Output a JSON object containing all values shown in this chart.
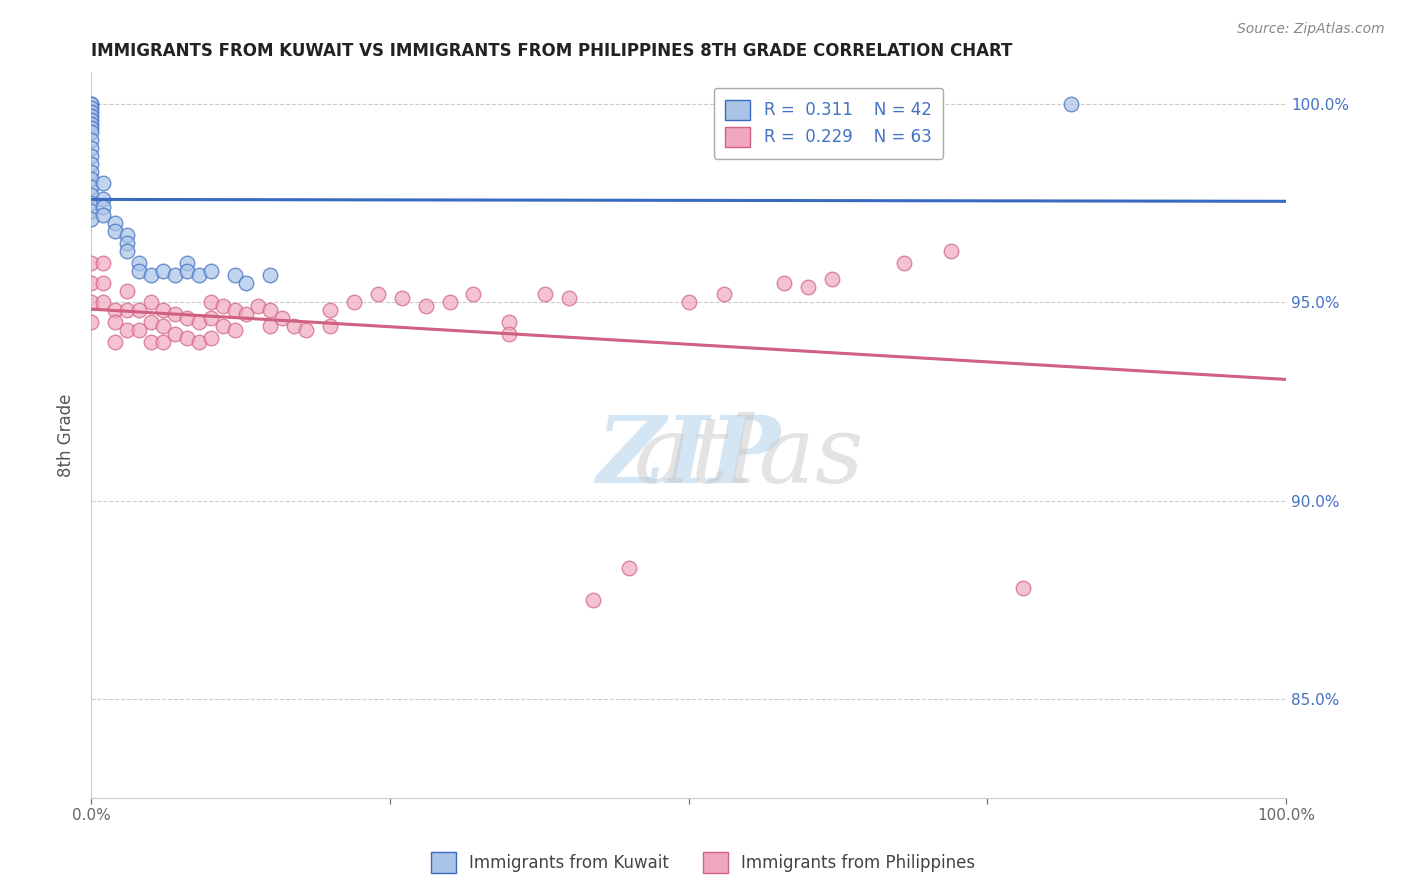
{
  "title": "IMMIGRANTS FROM KUWAIT VS IMMIGRANTS FROM PHILIPPINES 8TH GRADE CORRELATION CHART",
  "source": "Source: ZipAtlas.com",
  "ylabel": "8th Grade",
  "xlim": [
    0.0,
    1.0
  ],
  "ylim": [
    0.825,
    1.008
  ],
  "legend_r1": "R =  0.311",
  "legend_n1": "N = 42",
  "legend_r2": "R =  0.229",
  "legend_n2": "N = 63",
  "color_blue": "#aac4e8",
  "color_pink": "#f0a8c0",
  "line_color_blue": "#3a6abf",
  "line_color_pink": "#d06080",
  "background_color": "#ffffff",
  "title_color": "#222222",
  "axis_label_color": "#555555",
  "tick_color": "#666666",
  "grid_color": "#cccccc",
  "watermark_color_zip": "#b8d4ee",
  "watermark_color_atlas": "#c8c8c8",
  "kuwait_x": [
    0.0,
    0.0,
    0.0,
    0.0,
    0.0,
    0.0,
    0.0,
    0.0,
    0.0,
    0.0,
    0.0,
    0.0,
    0.0,
    0.0,
    0.0,
    0.0,
    0.0,
    0.0,
    0.0,
    0.0,
    0.01,
    0.01,
    0.01,
    0.01,
    0.02,
    0.02,
    0.03,
    0.03,
    0.03,
    0.04,
    0.04,
    0.05,
    0.06,
    0.07,
    0.08,
    0.08,
    0.09,
    0.1,
    0.12,
    0.13,
    0.15,
    0.82
  ],
  "kuwait_y": [
    1.0,
    1.0,
    0.999,
    0.998,
    0.997,
    0.996,
    0.995,
    0.994,
    0.993,
    0.991,
    0.989,
    0.987,
    0.985,
    0.983,
    0.981,
    0.979,
    0.977,
    0.975,
    0.973,
    0.971,
    0.98,
    0.976,
    0.974,
    0.972,
    0.97,
    0.968,
    0.967,
    0.965,
    0.963,
    0.96,
    0.958,
    0.957,
    0.958,
    0.957,
    0.96,
    0.958,
    0.957,
    0.958,
    0.957,
    0.955,
    0.957,
    1.0
  ],
  "phil_x": [
    0.0,
    0.0,
    0.0,
    0.0,
    0.01,
    0.01,
    0.01,
    0.02,
    0.02,
    0.02,
    0.03,
    0.03,
    0.03,
    0.04,
    0.04,
    0.05,
    0.05,
    0.05,
    0.06,
    0.06,
    0.06,
    0.07,
    0.07,
    0.08,
    0.08,
    0.09,
    0.09,
    0.1,
    0.1,
    0.1,
    0.11,
    0.11,
    0.12,
    0.12,
    0.13,
    0.14,
    0.15,
    0.15,
    0.16,
    0.17,
    0.18,
    0.2,
    0.2,
    0.22,
    0.24,
    0.26,
    0.28,
    0.3,
    0.32,
    0.35,
    0.35,
    0.38,
    0.4,
    0.42,
    0.45,
    0.5,
    0.53,
    0.58,
    0.6,
    0.62,
    0.68,
    0.72,
    0.78
  ],
  "phil_y": [
    0.96,
    0.955,
    0.95,
    0.945,
    0.96,
    0.955,
    0.95,
    0.948,
    0.945,
    0.94,
    0.953,
    0.948,
    0.943,
    0.948,
    0.943,
    0.95,
    0.945,
    0.94,
    0.948,
    0.944,
    0.94,
    0.947,
    0.942,
    0.946,
    0.941,
    0.945,
    0.94,
    0.95,
    0.946,
    0.941,
    0.949,
    0.944,
    0.948,
    0.943,
    0.947,
    0.949,
    0.948,
    0.944,
    0.946,
    0.944,
    0.943,
    0.948,
    0.944,
    0.95,
    0.952,
    0.951,
    0.949,
    0.95,
    0.952,
    0.945,
    0.942,
    0.952,
    0.951,
    0.875,
    0.883,
    0.95,
    0.952,
    0.955,
    0.954,
    0.956,
    0.96,
    0.963,
    0.878
  ]
}
